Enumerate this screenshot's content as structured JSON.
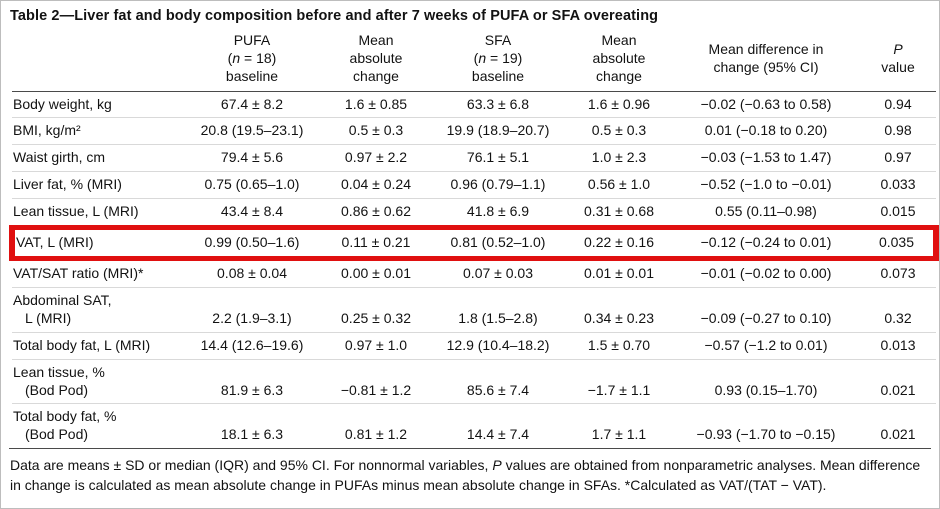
{
  "colors": {
    "highlight_red": "#e01010",
    "rule_dark": "#4a4a4a",
    "rule_light": "#d9d9d9"
  },
  "table": {
    "title": "Table 2—Liver fat and body composition before and after 7 weeks of PUFA or SFA overeating",
    "header": {
      "pufa": {
        "line1": "PUFA",
        "n_pre": "(",
        "n": "n",
        "n_post": " = 18)",
        "line3": "baseline"
      },
      "mean_change_1": {
        "line1": "Mean",
        "line2": "absolute",
        "line3": "change"
      },
      "sfa": {
        "line1": "SFA",
        "n_pre": "(",
        "n": "n",
        "n_post": " = 19)",
        "line3": "baseline"
      },
      "mean_change_2": {
        "line1": "Mean",
        "line2": "absolute",
        "line3": "change"
      },
      "diff": {
        "line1": "Mean difference in",
        "line2": "change (95% CI)"
      },
      "p": {
        "line1": "P",
        "line2": "value"
      }
    },
    "rows": [
      {
        "label_lines": [
          "Body weight, kg"
        ],
        "values": [
          "67.4 ± 8.2",
          "1.6 ± 0.85",
          "63.3 ± 6.8",
          "1.6 ± 0.96",
          "−0.02 (−0.63 to 0.58)",
          "0.94"
        ],
        "highlight": false
      },
      {
        "label_lines": [
          "BMI, kg/m²"
        ],
        "values": [
          "20.8 (19.5–23.1)",
          "0.5 ± 0.3",
          "19.9 (18.9–20.7)",
          "0.5 ± 0.3",
          "0.01 (−0.18 to 0.20)",
          "0.98"
        ],
        "highlight": false
      },
      {
        "label_lines": [
          "Waist girth, cm"
        ],
        "values": [
          "79.4 ± 5.6",
          "0.97 ± 2.2",
          "76.1 ± 5.1",
          "1.0 ± 2.3",
          "−0.03 (−1.53 to 1.47)",
          "0.97"
        ],
        "highlight": false
      },
      {
        "label_lines": [
          "Liver fat, % (MRI)"
        ],
        "values": [
          "0.75 (0.65–1.0)",
          "0.04 ± 0.24",
          "0.96 (0.79–1.1)",
          "0.56 ± 1.0",
          "−0.52 (−1.0 to −0.01)",
          "0.033"
        ],
        "highlight": false
      },
      {
        "label_lines": [
          "Lean tissue, L (MRI)"
        ],
        "values": [
          "43.4 ± 8.4",
          "0.86 ± 0.62",
          "41.8 ± 6.9",
          "0.31 ± 0.68",
          "0.55 (0.11–0.98)",
          "0.015"
        ],
        "highlight": false
      },
      {
        "label_lines": [
          "VAT, L (MRI)"
        ],
        "values": [
          "0.99 (0.50–1.6)",
          "0.11 ± 0.21",
          "0.81 (0.52–1.0)",
          "0.22 ± 0.16",
          "−0.12 (−0.24 to 0.01)",
          "0.035"
        ],
        "highlight": true
      },
      {
        "label_lines": [
          "VAT/SAT ratio (MRI)*"
        ],
        "values": [
          "0.08 ± 0.04",
          "0.00 ± 0.01",
          "0.07 ± 0.03",
          "0.01 ± 0.01",
          "−0.01 (−0.02 to 0.00)",
          "0.073"
        ],
        "highlight": false
      },
      {
        "label_lines": [
          "Abdominal SAT,",
          "L (MRI)"
        ],
        "values": [
          "2.2 (1.9–3.1)",
          "0.25 ± 0.32",
          "1.8 (1.5–2.8)",
          "0.34 ± 0.23",
          "−0.09 (−0.27 to 0.10)",
          "0.32"
        ],
        "highlight": false
      },
      {
        "label_lines": [
          "Total body fat, L (MRI)"
        ],
        "values": [
          "14.4 (12.6–19.6)",
          "0.97 ± 1.0",
          "12.9 (10.4–18.2)",
          "1.5 ± 0.70",
          "−0.57 (−1.2 to 0.01)",
          "0.013"
        ],
        "highlight": false
      },
      {
        "label_lines": [
          "Lean tissue, %",
          "(Bod Pod)"
        ],
        "values": [
          "81.9 ± 6.3",
          "−0.81 ± 1.2",
          "85.6 ± 7.4",
          "−1.7 ± 1.1",
          "0.93 (0.15–1.70)",
          "0.021"
        ],
        "highlight": false
      },
      {
        "label_lines": [
          "Total body fat, %",
          "(Bod Pod)"
        ],
        "values": [
          "18.1 ± 6.3",
          "0.81 ± 1.2",
          "14.4 ± 7.4",
          "1.7 ± 1.1",
          "−0.93 (−1.70 to −0.15)",
          "0.021"
        ],
        "highlight": false
      }
    ],
    "footnote": {
      "part1": "Data are means ± SD or median (IQR) and 95% CI. For nonnormal variables, ",
      "p_italic": "P",
      "part2": " values are obtained from nonparametric analyses. Mean difference in change is calculated as mean absolute change in PUFAs minus mean absolute change in SFAs. *Calculated as VAT/(TAT − VAT)."
    }
  }
}
